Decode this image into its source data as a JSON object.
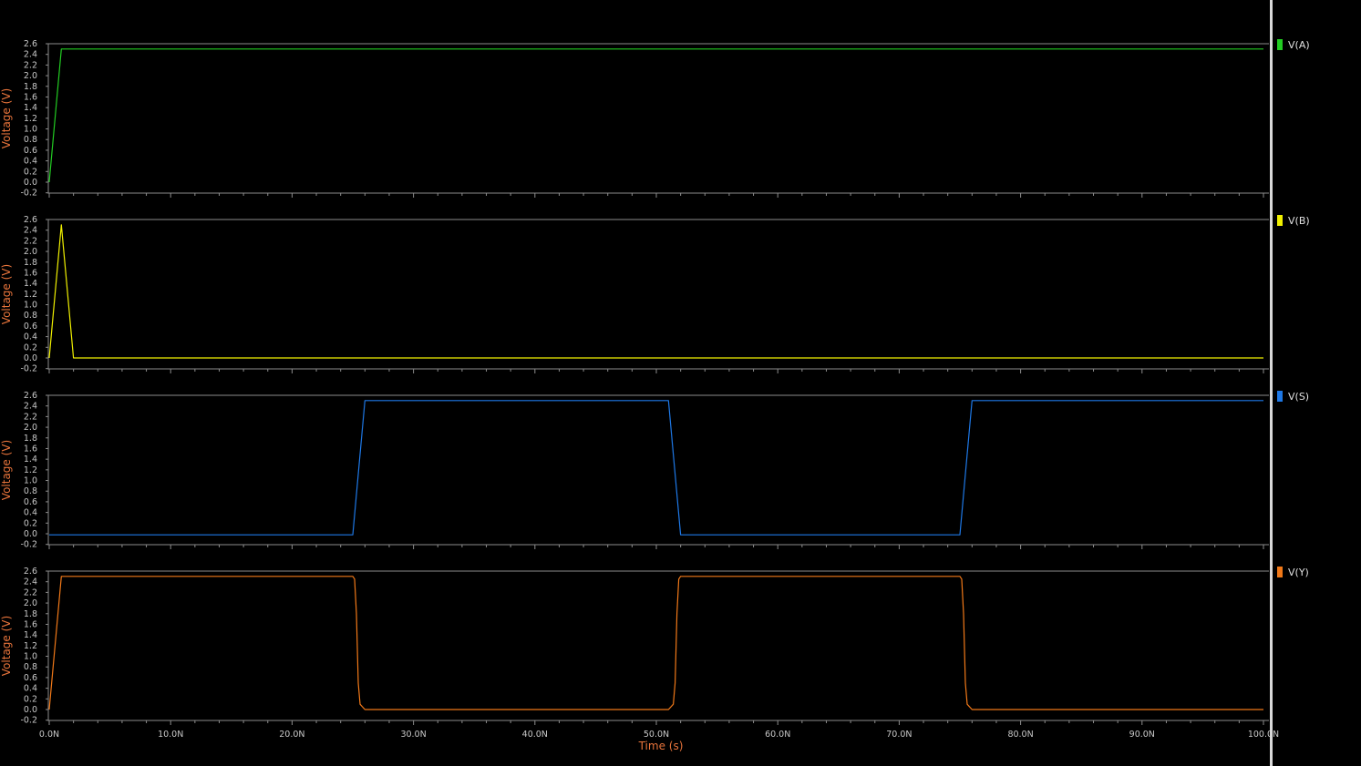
{
  "chart_data": [
    {
      "type": "line",
      "ylabel": "Voltage (V)",
      "ylim": [
        -0.2,
        2.6
      ],
      "yticks": [
        "2.6",
        "2.4",
        "2.2",
        "2.0",
        "1.8",
        "1.6",
        "1.4",
        "1.2",
        "1.0",
        "0.8",
        "0.6",
        "0.4",
        "0.2",
        "0.0",
        "-0.2"
      ],
      "xlim": [
        0,
        100
      ],
      "series": [
        {
          "name": "V(A)",
          "color": "#22cc22",
          "points": [
            [
              0,
              0
            ],
            [
              1,
              2.5
            ],
            [
              100,
              2.5
            ]
          ]
        }
      ]
    },
    {
      "type": "line",
      "ylabel": "Voltage (V)",
      "ylim": [
        -0.2,
        2.6
      ],
      "yticks": [
        "2.6",
        "2.4",
        "2.2",
        "2.0",
        "1.8",
        "1.6",
        "1.4",
        "1.2",
        "1.0",
        "0.8",
        "0.6",
        "0.4",
        "0.2",
        "0.0",
        "-0.2"
      ],
      "xlim": [
        0,
        100
      ],
      "series": [
        {
          "name": "V(B)",
          "color": "#f0f000",
          "points": [
            [
              0,
              0
            ],
            [
              1,
              2.5
            ],
            [
              2,
              0
            ],
            [
              100,
              0
            ]
          ]
        }
      ]
    },
    {
      "type": "line",
      "ylabel": "Voltage (V)",
      "ylim": [
        -0.2,
        2.6
      ],
      "yticks": [
        "2.6",
        "2.4",
        "2.2",
        "2.0",
        "1.8",
        "1.6",
        "1.4",
        "1.2",
        "1.0",
        "0.8",
        "0.6",
        "0.4",
        "0.2",
        "0.0",
        "-0.2"
      ],
      "xlim": [
        0,
        100
      ],
      "series": [
        {
          "name": "V(S)",
          "color": "#1e78e6",
          "points": [
            [
              0,
              -0.02
            ],
            [
              25,
              -0.02
            ],
            [
              26,
              2.5
            ],
            [
              51,
              2.5
            ],
            [
              52,
              -0.02
            ],
            [
              75,
              -0.02
            ],
            [
              76,
              2.5
            ],
            [
              100,
              2.5
            ]
          ]
        }
      ]
    },
    {
      "type": "line",
      "ylabel": "Voltage (V)",
      "ylim": [
        -0.2,
        2.6
      ],
      "yticks": [
        "2.6",
        "2.4",
        "2.2",
        "2.0",
        "1.8",
        "1.6",
        "1.4",
        "1.2",
        "1.0",
        "0.8",
        "0.6",
        "0.4",
        "0.2",
        "0.0",
        "-0.2"
      ],
      "xlim": [
        0,
        100
      ],
      "xlabel": "Time (s)",
      "xticks": [
        "0.0N",
        "10.0N",
        "20.0N",
        "30.0N",
        "40.0N",
        "50.0N",
        "60.0N",
        "70.0N",
        "80.0N",
        "90.0N",
        "100.0N"
      ],
      "series": [
        {
          "name": "V(Y)",
          "color": "#f07818",
          "points": [
            [
              0,
              0
            ],
            [
              1,
              2.5
            ],
            [
              25,
              2.5
            ],
            [
              25.15,
              2.45
            ],
            [
              25.3,
              1.8
            ],
            [
              25.45,
              0.5
            ],
            [
              25.6,
              0.1
            ],
            [
              26,
              0.0
            ],
            [
              51,
              0.0
            ],
            [
              51.4,
              0.1
            ],
            [
              51.55,
              0.5
            ],
            [
              51.7,
              1.8
            ],
            [
              51.85,
              2.45
            ],
            [
              52,
              2.5
            ],
            [
              75,
              2.5
            ],
            [
              75.15,
              2.45
            ],
            [
              75.3,
              1.8
            ],
            [
              75.45,
              0.5
            ],
            [
              75.6,
              0.1
            ],
            [
              76,
              0.0
            ],
            [
              100,
              0.0
            ]
          ]
        }
      ]
    }
  ]
}
